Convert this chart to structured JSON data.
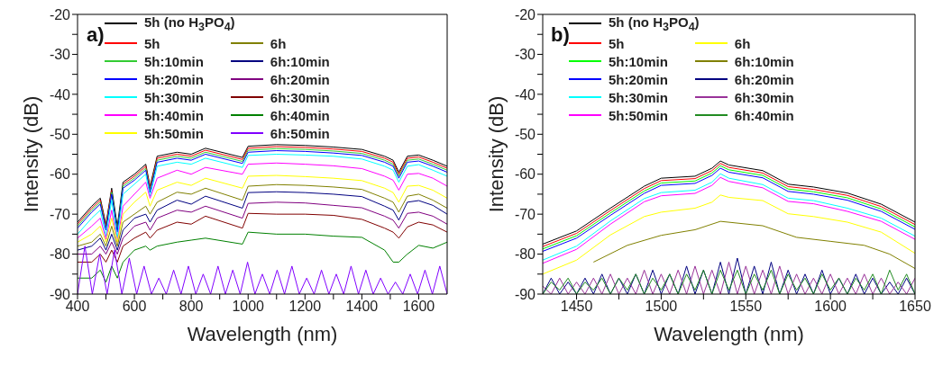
{
  "chart_data": [
    {
      "type": "line",
      "title": "a)",
      "xlabel": "Wavelength (nm)",
      "ylabel": "Intensity (dB)",
      "legend": "top left",
      "x": [
        400,
        450,
        480,
        500,
        520,
        540,
        560,
        600,
        640,
        655,
        680,
        750,
        800,
        850,
        980,
        1000,
        1100,
        1200,
        1300,
        1400,
        1480,
        1510,
        1530,
        1560,
        1600,
        1650,
        1700
      ],
      "xlim": [
        400,
        1700
      ],
      "xticks": [
        400,
        {
          "value": 500,
          "label": null
        },
        600,
        {
          "value": 700,
          "label": null
        },
        800,
        {
          "value": 900,
          "label": null
        },
        1000,
        {
          "value": 1100,
          "label": null
        },
        1200,
        {
          "value": 1300,
          "label": null
        },
        1400,
        {
          "value": 1500,
          "label": null
        },
        1600
      ],
      "ylim": [
        -90,
        -20
      ],
      "yticks": [
        -90,
        {
          "value": -85,
          "label": null
        },
        -80,
        {
          "value": -75,
          "label": null
        },
        -70,
        {
          "value": -65,
          "label": null
        },
        -60,
        {
          "value": -55,
          "label": null
        },
        -50,
        {
          "value": -45,
          "label": null
        },
        -40,
        {
          "value": -35,
          "label": null
        },
        -30,
        {
          "value": -25,
          "label": null
        },
        -20
      ],
      "series": [
        {
          "name": "5h (no H$_{3}$PO$_{4}$)",
          "color": "#000000",
          "values": [
            -72,
            -68,
            -66,
            -72.5,
            -63.5,
            -73,
            -62,
            -60,
            -57.5,
            -63,
            -55.5,
            -54.5,
            -55,
            -53.5,
            -55.8,
            -53,
            -52.6,
            -52.8,
            -53.2,
            -53.8,
            -55.5,
            -56.5,
            -59.5,
            -55.5,
            -55.2,
            -56.5,
            -58
          ]
        },
        {
          "name": "5h",
          "color": "#ff0000",
          "values": [
            -72.5,
            -68.5,
            -66.5,
            -73,
            -64,
            null,
            -62.5,
            -60.5,
            -58,
            -63.5,
            -56,
            -55,
            -55.5,
            -54,
            -56.3,
            -53.5,
            -53.1,
            -53.3,
            -53.7,
            -54.3,
            -56,
            -57,
            -60,
            -56,
            -55.7,
            -57,
            -58.5
          ]
        },
        {
          "name": "5h:10min",
          "color": "#33cc33",
          "values": [
            -73,
            -69,
            -67,
            -73.5,
            -64.5,
            -74,
            -63,
            -61,
            -58.5,
            -64,
            -56.5,
            -55.5,
            -56,
            -54.5,
            -56.8,
            -54,
            -53.6,
            -53.8,
            -54.2,
            -54.8,
            -56.5,
            -57.5,
            -60.5,
            -56.5,
            -56.2,
            -57.5,
            -59
          ]
        },
        {
          "name": "5h:20min",
          "color": "#0000ff",
          "values": [
            -73.5,
            -69.5,
            -67.5,
            -74,
            -65,
            -74.5,
            -63.5,
            -61.5,
            -59,
            -64.5,
            -57,
            -56,
            -56.5,
            -55,
            -57.3,
            -54.5,
            -54.1,
            -54.3,
            -54.7,
            -55.3,
            -57,
            -58,
            -61,
            -57,
            -56.7,
            -58,
            -59.5
          ]
        },
        {
          "name": "5h:30min",
          "color": "#00ffff",
          "values": [
            -75,
            -71,
            -69,
            -75.5,
            -66.5,
            -76,
            -65,
            -62.5,
            -60,
            -65.5,
            -58,
            -57,
            -57.5,
            -56,
            -58.3,
            -55.3,
            -55,
            -55.2,
            -55.5,
            -56.2,
            -58,
            -59,
            -62,
            -58,
            -57.6,
            -59,
            -60.5
          ]
        },
        {
          "name": "5h:40min",
          "color": "#ff00ff",
          "values": [
            -76,
            -73,
            -71,
            -76.3,
            -69,
            -77,
            -68,
            -65,
            -62,
            -66,
            -61,
            -59,
            -60,
            -58.3,
            -60,
            -57.5,
            -57.2,
            -57.5,
            -57.9,
            -58.6,
            -60.5,
            -61.5,
            -64,
            -60,
            -59.8,
            -61,
            -63
          ]
        },
        {
          "name": "5h:50min",
          "color": "#ffff00",
          "values": [
            -77,
            -75,
            -73,
            -77,
            -71,
            -77,
            -70,
            -67,
            -64.5,
            -68,
            -64,
            -62,
            -62.8,
            -61,
            -63.5,
            -60.5,
            -60.3,
            -60.6,
            -61,
            -61.6,
            -63.5,
            -64.6,
            -67,
            -63,
            -62.8,
            -64,
            -66
          ]
        },
        {
          "name": "6h",
          "color": "#808000",
          "values": [
            -78,
            -77,
            -75,
            -78,
            -73,
            -78,
            -72,
            -70,
            -68,
            -70,
            -67,
            -64.5,
            -65,
            -63.5,
            -66.5,
            -63,
            -62.6,
            -62.8,
            -63.2,
            -63.8,
            -66,
            -67,
            -69.5,
            -65.5,
            -65,
            -66.5,
            -68.5
          ]
        },
        {
          "name": "6h:10min",
          "color": "#000080",
          "values": [
            -79,
            -78,
            -76,
            -79,
            -75,
            -79,
            -74,
            -71,
            -70,
            -72,
            -69,
            -66.5,
            -67.5,
            -65.5,
            -68.5,
            -64.6,
            -64.4,
            -64.6,
            -65,
            -65.6,
            -68,
            -69,
            -71.5,
            -67,
            -66.6,
            -67.8,
            -70
          ]
        },
        {
          "name": "6h:20min",
          "color": "#800080",
          "values": [
            -80,
            -80,
            -78,
            -80,
            -77,
            -80,
            -76,
            -73,
            -72,
            -74,
            -71,
            -69,
            -69.5,
            -68,
            -71,
            -67.3,
            -67,
            -67.2,
            -67.8,
            -68.4,
            -70.5,
            -71.5,
            -73.5,
            -69.8,
            -69.5,
            -70.5,
            -72.5
          ]
        },
        {
          "name": "6h:30min",
          "color": "#800000",
          "values": [
            -82,
            -82,
            -80,
            -82,
            -79,
            -82,
            -78,
            -76,
            -74.5,
            -76,
            -74,
            -72,
            -72.5,
            -70.5,
            -73.5,
            -69.8,
            -70,
            -70,
            -70.3,
            -71.3,
            -73.5,
            -74.5,
            -76,
            -73.2,
            -72,
            -72.7,
            -74.5
          ]
        },
        {
          "name": "6h:40min",
          "color": "#008000",
          "values": [
            -86,
            -86,
            -84,
            -87,
            -83,
            -86,
            -82,
            -79,
            -78,
            -79,
            -78,
            -77,
            -76.5,
            -76,
            -77.5,
            -74.5,
            -75,
            -75,
            -75.5,
            -75.8,
            -79,
            -82,
            -82,
            -80,
            -77.8,
            -78.5,
            -77
          ]
        },
        {
          "name": "6h:50min",
          "color": "#8000ff",
          "x": [
            400,
            426,
            452,
            478,
            504,
            530,
            556,
            582,
            608,
            634,
            660,
            686,
            712,
            738,
            764,
            790,
            816,
            842,
            868,
            894,
            920,
            946,
            972,
            998,
            1024,
            1050,
            1076,
            1102,
            1128,
            1154,
            1180,
            1206,
            1232,
            1258,
            1284,
            1310,
            1336,
            1362,
            1388,
            1414,
            1440,
            1466,
            1492,
            1518,
            1544,
            1570,
            1596,
            1622,
            1648,
            1674,
            1700
          ],
          "values": [
            -90,
            -78,
            -90,
            -80,
            -90,
            -79,
            -90,
            -81,
            -90,
            -83,
            -90,
            -86,
            -90,
            -84,
            -90,
            -83,
            -90,
            -85,
            -90,
            -83,
            -90,
            -84,
            -90,
            -82,
            -90,
            -85,
            -90,
            -84,
            -90,
            -83,
            -90,
            -86,
            -90,
            -84,
            -90,
            -85,
            -90,
            -83,
            -90,
            -84,
            -90,
            -86,
            -90,
            -87,
            -90,
            -85,
            -90,
            -84,
            -90,
            -83,
            -90
          ]
        }
      ]
    },
    {
      "type": "line",
      "title": "b)",
      "xlabel": "Wavelength (nm)",
      "ylabel": "Intensity (dB)",
      "legend": "top left",
      "x": [
        1430,
        1450,
        1470,
        1490,
        1500,
        1520,
        1530,
        1535,
        1540,
        1560,
        1575,
        1590,
        1610,
        1630,
        1650
      ],
      "xlim": [
        1430,
        1650
      ],
      "xticks": [
        1450,
        {
          "value": 1475,
          "label": null
        },
        1500,
        {
          "value": 1525,
          "label": null
        },
        1550,
        {
          "value": 1575,
          "label": null
        },
        1600,
        {
          "value": 1625,
          "label": null
        },
        1650
      ],
      "ylim": [
        -90,
        -20
      ],
      "yticks": [
        -90,
        {
          "value": -85,
          "label": null
        },
        -80,
        {
          "value": -75,
          "label": null
        },
        -70,
        {
          "value": -65,
          "label": null
        },
        -60,
        {
          "value": -55,
          "label": null
        },
        -50,
        {
          "value": -45,
          "label": null
        },
        -40,
        {
          "value": -35,
          "label": null
        },
        -30,
        {
          "value": -25,
          "label": null
        },
        -20
      ],
      "series": [
        {
          "name": "5h (no H$_{3}$PO$_{4}$)",
          "color": "#000000",
          "values": [
            -77.5,
            -74.2,
            -68.5,
            -63,
            -61,
            -60.5,
            -58.5,
            -56.7,
            -57.7,
            -59.1,
            -62.5,
            -63.2,
            -64.7,
            -67.5,
            -72
          ]
        },
        {
          "name": "5h",
          "color": "#ff0000",
          "values": [
            -78.1,
            -74.8,
            -69.1,
            -63.6,
            -61.6,
            -61.1,
            -59.1,
            -57.3,
            -58.3,
            -59.7,
            -63.1,
            -63.8,
            -65.3,
            -68.1,
            -72.6
          ]
        },
        {
          "name": "5h:10min",
          "color": "#00ff00",
          "values": [
            -78.7,
            -75.4,
            -69.7,
            -64.2,
            -62.2,
            -61.7,
            -59.7,
            -57.9,
            -58.9,
            -60.3,
            -63.7,
            -64.4,
            -65.9,
            -68.7,
            -73.2
          ]
        },
        {
          "name": "5h:20min",
          "color": "#0000ff",
          "values": [
            -79.3,
            -76,
            -70.3,
            -64.8,
            -62.8,
            -62.3,
            -60.3,
            -58.5,
            -59.5,
            -60.9,
            -64.3,
            -65,
            -66.5,
            -69.3,
            -73.8
          ]
        },
        {
          "name": "5h:30min",
          "color": "#00ffff",
          "values": [
            -81.5,
            -78,
            -71.7,
            -66.1,
            -64.6,
            -64,
            -62,
            -59.9,
            -61,
            -62.6,
            -66,
            -66.6,
            -68.5,
            -71,
            -75.5
          ]
        },
        {
          "name": "5h:50min",
          "color": "#ff00ff",
          "values": [
            -82.3,
            -78.8,
            -72.5,
            -66.9,
            -65.4,
            -64.8,
            -62.8,
            -60.8,
            -61.8,
            -63.4,
            -66.8,
            -67.4,
            -69.3,
            -71.8,
            -76.3
          ]
        },
        {
          "name": "6h",
          "color": "#ffff00",
          "values": [
            -85,
            -81.5,
            -75.2,
            -70.6,
            -69.5,
            -68.5,
            -67,
            -65.2,
            -65.8,
            -66.6,
            -69.9,
            -70.6,
            -72,
            -74.5,
            -79.8
          ]
        },
        {
          "name": "6h:10min",
          "color": "#808000",
          "x": [
            1460,
            1480,
            1500,
            1520,
            1535,
            1560,
            1580,
            1600,
            1620,
            1635,
            1650
          ],
          "values": [
            -82,
            -77.8,
            -75.3,
            -73.9,
            -71.8,
            -72.9,
            -75.8,
            -76.8,
            -77.8,
            -80,
            -83.6
          ]
        },
        {
          "name": "6h:20min",
          "color": "#000080",
          "x": [
            1430,
            1435,
            1440,
            1445,
            1450,
            1455,
            1460,
            1465,
            1470,
            1475,
            1480,
            1485,
            1490,
            1495,
            1500,
            1505,
            1510,
            1515,
            1520,
            1525,
            1530,
            1535,
            1540,
            1545,
            1550,
            1555,
            1560,
            1565,
            1570,
            1575,
            1580,
            1585,
            1590,
            1595,
            1600,
            1605,
            1610,
            1615,
            1620,
            1625,
            1630,
            1635,
            1640,
            1645,
            1650
          ],
          "values": [
            -90,
            -86,
            -90,
            -87,
            -90,
            -86,
            -90,
            -85,
            -90,
            -86,
            -90,
            -85,
            -90,
            -84,
            -90,
            -85,
            -90,
            -83,
            -90,
            -84,
            -90,
            -82,
            -90,
            -81,
            -90,
            -83,
            -90,
            -82,
            -90,
            -84,
            -90,
            -85,
            -90,
            -84,
            -90,
            -86,
            -90,
            -85,
            -90,
            -86,
            -90,
            -87,
            -90,
            -86,
            -90
          ]
        },
        {
          "name": "6h:30min",
          "color": "#993399",
          "x": [
            1430,
            1435,
            1440,
            1445,
            1450,
            1455,
            1460,
            1465,
            1470,
            1475,
            1480,
            1485,
            1490,
            1495,
            1500,
            1505,
            1510,
            1515,
            1520,
            1525,
            1530,
            1535,
            1540,
            1545,
            1550,
            1555,
            1560,
            1565,
            1570,
            1575,
            1580,
            1585,
            1590,
            1595,
            1600,
            1605,
            1610,
            1615,
            1620,
            1625,
            1630,
            1635,
            1640,
            1645,
            1650
          ],
          "values": [
            -88,
            -90,
            -86,
            -90,
            -87,
            -90,
            -86,
            -90,
            -85,
            -90,
            -86,
            -90,
            -84,
            -90,
            -85,
            -90,
            -84,
            -90,
            -83,
            -90,
            -84,
            -90,
            -82,
            -90,
            -83,
            -90,
            -84,
            -90,
            -83,
            -90,
            -85,
            -90,
            -86,
            -90,
            -85,
            -90,
            -86,
            -90,
            -85,
            -90,
            -86,
            -90,
            -87,
            -90,
            -86
          ]
        },
        {
          "name": "6h:40min",
          "color": "#228b22",
          "x": [
            1430,
            1435,
            1440,
            1445,
            1450,
            1455,
            1460,
            1465,
            1470,
            1475,
            1480,
            1485,
            1490,
            1495,
            1500,
            1505,
            1510,
            1515,
            1520,
            1525,
            1530,
            1535,
            1540,
            1545,
            1550,
            1555,
            1560,
            1565,
            1570,
            1575,
            1580,
            1585,
            1590,
            1595,
            1600,
            1605,
            1610,
            1615,
            1620,
            1625,
            1630,
            1635,
            1640,
            1645,
            1650
          ],
          "values": [
            -90,
            -87,
            -89,
            -86,
            -90,
            -87,
            -89,
            -86,
            -90,
            -86,
            -89,
            -85,
            -90,
            -86,
            -89,
            -85,
            -90,
            -85,
            -89,
            -84,
            -90,
            -84,
            -89,
            -84,
            -90,
            -85,
            -89,
            -84,
            -90,
            -85,
            -89,
            -86,
            -90,
            -85,
            -89,
            -86,
            -90,
            -86,
            -89,
            -85,
            -90,
            -84,
            -89,
            -85,
            -90
          ]
        }
      ]
    }
  ]
}
